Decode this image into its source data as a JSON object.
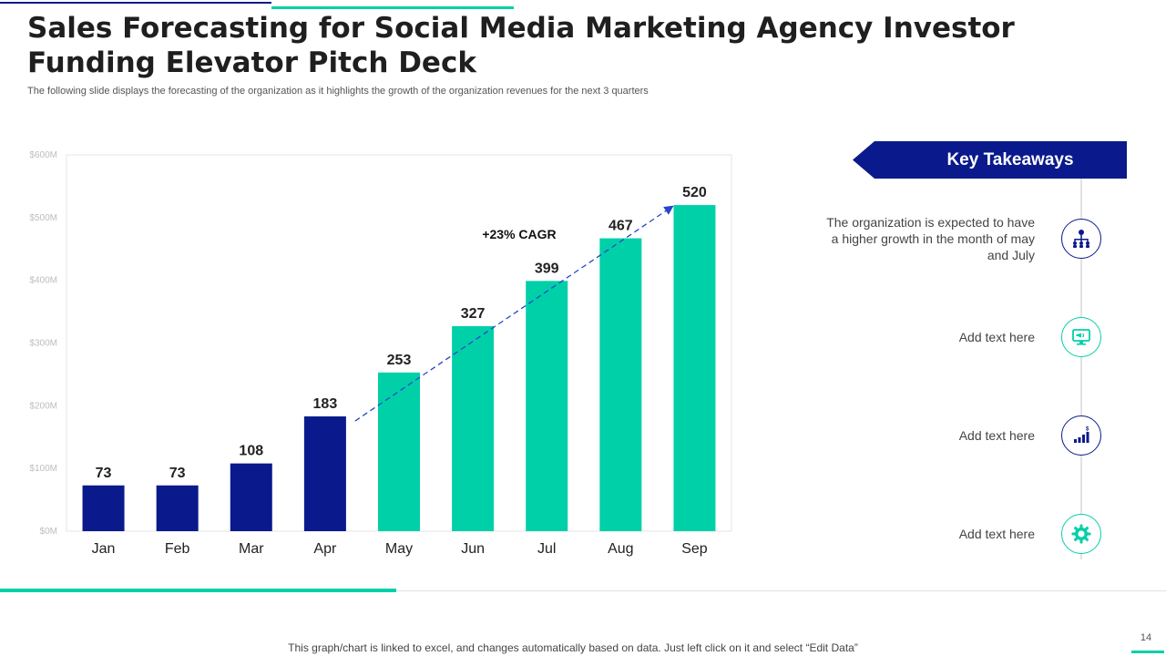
{
  "slide": {
    "title": "Sales Forecasting for Social Media Marketing Agency Investor Funding Elevator Pitch Deck",
    "subtitle": "The following slide displays the forecasting of the organization as it highlights the growth of the organization revenues for the next 3 quarters",
    "footer_note": "This graph/chart is linked to excel, and changes automatically based on data. Just left click on it and select “Edit Data”",
    "page_number": "14"
  },
  "chart_data": {
    "type": "bar",
    "categories": [
      "Jan",
      "Feb",
      "Mar",
      "Apr",
      "May",
      "Jun",
      "Jul",
      "Aug",
      "Sep"
    ],
    "values": [
      73,
      73,
      108,
      183,
      253,
      327,
      399,
      467,
      520
    ],
    "data_labels": [
      "73",
      "73",
      "108",
      "183",
      "253",
      "327",
      "399",
      "467",
      "520"
    ],
    "y_tick_values": [
      0,
      100,
      200,
      300,
      400,
      500,
      600
    ],
    "y_tick_labels": [
      "$0M",
      "$100M",
      "$200M",
      "$300M",
      "$400M",
      "$500M",
      "$600M"
    ],
    "ylim": [
      0,
      600
    ],
    "grid": false,
    "annotation": "+23% CAGR",
    "actual_color": "#0a1a8c",
    "forecast_color": "#00d0a8",
    "forecast_start_category": "May"
  },
  "key_takeaways": {
    "title": "Key Takeaways",
    "items": [
      {
        "text": "The organization is expected to have a higher growth in the month of may and July",
        "icon": "org-chart-icon",
        "color": "#0a1a8c"
      },
      {
        "text": "Add text here",
        "icon": "monitor-megaphone-icon",
        "color": "#00d0a8"
      },
      {
        "text": "Add text here",
        "icon": "bar-growth-dollar-icon",
        "color": "#0a1a8c"
      },
      {
        "text": "Add text here",
        "icon": "gear-icon",
        "color": "#00d0a8"
      }
    ]
  }
}
